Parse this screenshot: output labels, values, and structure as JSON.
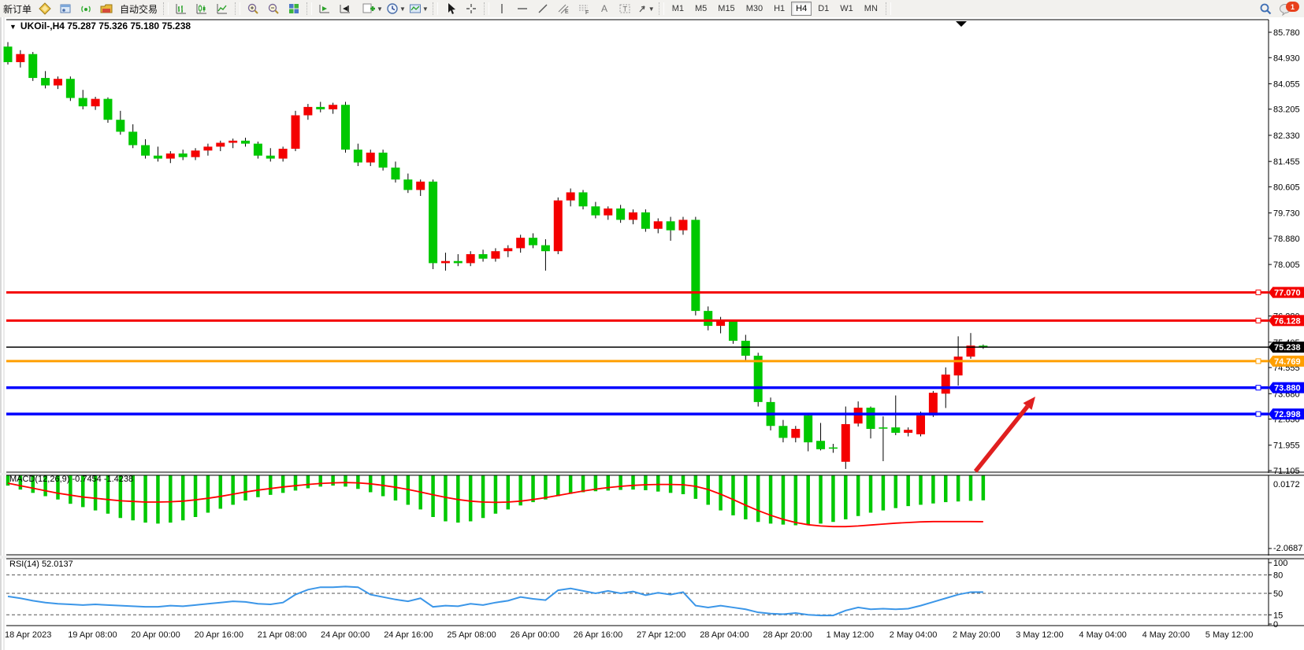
{
  "toolbar": {
    "new_order": "新订单",
    "auto_trading": "自动交易",
    "timeframes": [
      "M1",
      "M5",
      "M15",
      "M30",
      "H1",
      "H4",
      "D1",
      "W1",
      "MN"
    ],
    "active_timeframe": "H4",
    "notification_count": "1",
    "icons": [
      "market-watch-icon",
      "data-window-icon",
      "signal-icon",
      "autotrade-icon",
      "bar-chart-icon",
      "candlestick-chart-icon",
      "line-chart-icon",
      "zoom-in-icon",
      "zoom-out-icon",
      "tile-windows-icon",
      "chart-shift-icon",
      "chart-autoscroll-icon",
      "new-chart-icon",
      "period-icon",
      "template-icon",
      "cursor-icon",
      "crosshair-icon",
      "vertical-line-icon",
      "horizontal-line-icon",
      "trendline-icon",
      "channel-icon",
      "fibonacci-icon",
      "text-icon",
      "text-label-icon",
      "arrow-shapes-icon",
      "search-icon",
      "notification-icon"
    ]
  },
  "chart": {
    "title": "UKOil-,H4 75.287 75.326 75.180 75.238",
    "symbol": "UKOil-",
    "period": "H4",
    "open": "75.287",
    "high": "75.326",
    "low": "75.180",
    "close": "75.238"
  },
  "price_axis": {
    "ticks": [
      "85.780",
      "84.930",
      "84.055",
      "83.205",
      "82.330",
      "81.455",
      "80.605",
      "79.730",
      "78.880",
      "78.005",
      "76.280",
      "75.405",
      "74.555",
      "73.680",
      "72.830",
      "71.955",
      "71.105"
    ]
  },
  "time_axis": {
    "labels": [
      "18 Apr 2023",
      "19 Apr 08:00",
      "20 Apr 00:00",
      "20 Apr 16:00",
      "21 Apr 08:00",
      "24 Apr 00:00",
      "24 Apr 16:00",
      "25 Apr 08:00",
      "26 Apr 00:00",
      "26 Apr 16:00",
      "27 Apr 12:00",
      "28 Apr 04:00",
      "28 Apr 20:00",
      "1 May 12:00",
      "2 May 04:00",
      "2 May 20:00",
      "3 May 12:00",
      "4 May 04:00",
      "4 May 20:00",
      "5 May 12:00"
    ]
  },
  "indicators": {
    "macd": {
      "label": "MACD(12,26,9)",
      "values": "-0.7454 -1.4238",
      "axis_ticks": [
        "0.0172",
        "-2.0687"
      ]
    },
    "rsi": {
      "label": "RSI(14)",
      "value": "52.0137",
      "axis_ticks": [
        "100",
        "80",
        "50",
        "15",
        "0"
      ],
      "levels": [
        80,
        50,
        15
      ]
    }
  },
  "colors": {
    "bull": "#f40000",
    "bear": "#00c800",
    "wick": "#000000",
    "resistance": "#f40000",
    "support": "#0000ff",
    "pivot": "#ff9f00",
    "current_price": "#000000",
    "macd_histogram": "#00c800",
    "macd_signal": "#ff0000",
    "rsi_line": "#3b96e8",
    "arrow": "#e01f1f"
  },
  "chart_data": {
    "type": "candlestick",
    "symbol": "UKOil-",
    "timeframe": "H4",
    "price_axis_range": [
      71.0,
      85.9
    ],
    "candles": [
      [
        85.3,
        85.45,
        84.7,
        84.78
      ],
      [
        84.78,
        85.18,
        84.6,
        85.05
      ],
      [
        85.05,
        85.12,
        84.15,
        84.25
      ],
      [
        84.25,
        84.48,
        83.9,
        84.0
      ],
      [
        84.0,
        84.3,
        83.88,
        84.22
      ],
      [
        84.22,
        84.3,
        83.48,
        83.58
      ],
      [
        83.58,
        83.85,
        83.2,
        83.3
      ],
      [
        83.3,
        83.62,
        83.18,
        83.55
      ],
      [
        83.55,
        83.6,
        82.75,
        82.85
      ],
      [
        82.85,
        83.15,
        82.35,
        82.45
      ],
      [
        82.45,
        82.7,
        81.9,
        82.0
      ],
      [
        82.0,
        82.2,
        81.55,
        81.65
      ],
      [
        81.65,
        81.95,
        81.45,
        81.55
      ],
      [
        81.55,
        81.8,
        81.4,
        81.72
      ],
      [
        81.72,
        81.85,
        81.5,
        81.6
      ],
      [
        81.6,
        81.9,
        81.5,
        81.82
      ],
      [
        81.82,
        82.05,
        81.65,
        81.95
      ],
      [
        81.95,
        82.15,
        81.8,
        82.08
      ],
      [
        82.08,
        82.22,
        81.9,
        82.15
      ],
      [
        82.15,
        82.25,
        81.95,
        82.05
      ],
      [
        82.05,
        82.12,
        81.55,
        81.65
      ],
      [
        81.65,
        81.9,
        81.45,
        81.55
      ],
      [
        81.55,
        81.95,
        81.45,
        81.88
      ],
      [
        81.88,
        83.15,
        81.8,
        83.0
      ],
      [
        83.0,
        83.38,
        82.85,
        83.28
      ],
      [
        83.28,
        83.45,
        83.1,
        83.2
      ],
      [
        83.2,
        83.42,
        83.05,
        83.35
      ],
      [
        83.35,
        83.45,
        81.75,
        81.85
      ],
      [
        81.85,
        82.05,
        81.3,
        81.42
      ],
      [
        81.42,
        81.85,
        81.3,
        81.75
      ],
      [
        81.75,
        81.85,
        81.15,
        81.25
      ],
      [
        81.25,
        81.45,
        80.75,
        80.85
      ],
      [
        80.85,
        81.05,
        80.4,
        80.5
      ],
      [
        80.5,
        80.85,
        80.3,
        80.78
      ],
      [
        80.78,
        80.85,
        77.85,
        78.05
      ],
      [
        78.05,
        78.4,
        77.8,
        78.12
      ],
      [
        78.12,
        78.35,
        77.95,
        78.05
      ],
      [
        78.05,
        78.45,
        77.95,
        78.35
      ],
      [
        78.35,
        78.5,
        78.1,
        78.2
      ],
      [
        78.2,
        78.55,
        78.1,
        78.45
      ],
      [
        78.45,
        78.65,
        78.25,
        78.55
      ],
      [
        78.55,
        79.0,
        78.4,
        78.9
      ],
      [
        78.9,
        79.05,
        78.55,
        78.65
      ],
      [
        78.65,
        78.85,
        77.8,
        78.45
      ],
      [
        78.45,
        80.25,
        78.35,
        80.15
      ],
      [
        80.15,
        80.55,
        79.95,
        80.42
      ],
      [
        80.42,
        80.5,
        79.85,
        79.95
      ],
      [
        79.95,
        80.1,
        79.55,
        79.65
      ],
      [
        79.65,
        79.95,
        79.5,
        79.88
      ],
      [
        79.88,
        80.0,
        79.4,
        79.5
      ],
      [
        79.5,
        79.85,
        79.35,
        79.75
      ],
      [
        79.75,
        79.85,
        79.1,
        79.2
      ],
      [
        79.2,
        79.55,
        79.05,
        79.45
      ],
      [
        79.45,
        79.6,
        78.8,
        79.15
      ],
      [
        79.15,
        79.6,
        79.0,
        79.5
      ],
      [
        79.5,
        79.6,
        76.3,
        76.45
      ],
      [
        76.45,
        76.6,
        75.8,
        75.95
      ],
      [
        75.95,
        76.25,
        75.7,
        76.1
      ],
      [
        76.1,
        76.15,
        75.35,
        75.45
      ],
      [
        75.45,
        75.65,
        74.8,
        74.95
      ],
      [
        74.95,
        75.05,
        73.25,
        73.4
      ],
      [
        73.4,
        73.55,
        72.45,
        72.6
      ],
      [
        72.6,
        72.8,
        72.05,
        72.2
      ],
      [
        72.2,
        72.6,
        72.05,
        72.5
      ],
      [
        72.95,
        73.0,
        71.75,
        72.05
      ],
      [
        72.1,
        72.7,
        71.78,
        71.82
      ],
      [
        71.88,
        72.0,
        71.7,
        71.85
      ],
      [
        71.4,
        73.25,
        71.16,
        72.66
      ],
      [
        72.68,
        73.42,
        72.58,
        73.21
      ],
      [
        73.21,
        73.25,
        72.18,
        72.5
      ],
      [
        72.55,
        72.92,
        71.42,
        72.52
      ],
      [
        72.55,
        73.62,
        72.29,
        72.37
      ],
      [
        72.37,
        72.55,
        72.25,
        72.47
      ],
      [
        72.32,
        73.08,
        72.25,
        72.95
      ],
      [
        72.95,
        73.77,
        72.9,
        73.71
      ],
      [
        73.68,
        74.56,
        73.2,
        74.32
      ],
      [
        74.29,
        75.6,
        73.95,
        74.92
      ],
      [
        74.92,
        75.71,
        74.85,
        75.29
      ],
      [
        75.287,
        75.326,
        75.18,
        75.238
      ]
    ],
    "hlines": [
      {
        "price": 77.07,
        "label": "77.070",
        "color": "#f40000",
        "width": 3,
        "name": "resistance-line-1"
      },
      {
        "price": 76.128,
        "label": "76.128",
        "color": "#f40000",
        "width": 3,
        "name": "resistance-line-2"
      },
      {
        "price": 75.238,
        "label": "75.238",
        "color": "#000000",
        "width": 1.5,
        "name": "current-price-line"
      },
      {
        "price": 74.769,
        "label": "74.769",
        "color": "#ff9f00",
        "width": 3,
        "name": "pivot-line"
      },
      {
        "price": 73.88,
        "label": "73.880",
        "color": "#0000ff",
        "width": 3.5,
        "name": "support-line-1"
      },
      {
        "price": 72.998,
        "label": "72.998",
        "color": "#0000ff",
        "width": 3.5,
        "name": "support-line-2"
      }
    ],
    "macd_histogram": [
      -0.3,
      -0.42,
      -0.52,
      -0.62,
      -0.72,
      -0.85,
      -0.95,
      -1.05,
      -1.15,
      -1.28,
      -1.35,
      -1.42,
      -1.45,
      -1.42,
      -1.35,
      -1.25,
      -1.12,
      -1.0,
      -0.88,
      -0.75,
      -0.65,
      -0.58,
      -0.52,
      -0.45,
      -0.38,
      -0.33,
      -0.3,
      -0.33,
      -0.4,
      -0.5,
      -0.62,
      -0.75,
      -0.88,
      -1.02,
      -1.25,
      -1.38,
      -1.42,
      -1.38,
      -1.28,
      -1.15,
      -1.02,
      -0.9,
      -0.8,
      -0.72,
      -0.62,
      -0.55,
      -0.5,
      -0.47,
      -0.45,
      -0.43,
      -0.42,
      -0.44,
      -0.48,
      -0.52,
      -0.56,
      -0.7,
      -0.88,
      -1.05,
      -1.2,
      -1.32,
      -1.4,
      -1.45,
      -1.48,
      -1.5,
      -1.48,
      -1.45,
      -1.4,
      -1.32,
      -1.22,
      -1.12,
      -1.05,
      -0.98,
      -0.92,
      -0.88,
      -0.84,
      -0.8,
      -0.78,
      -0.76,
      -0.7454
    ],
    "macd_signal": [
      -0.2,
      -0.28,
      -0.36,
      -0.44,
      -0.52,
      -0.58,
      -0.64,
      -0.68,
      -0.72,
      -0.76,
      -0.78,
      -0.8,
      -0.8,
      -0.79,
      -0.77,
      -0.73,
      -0.68,
      -0.62,
      -0.55,
      -0.48,
      -0.42,
      -0.37,
      -0.32,
      -0.28,
      -0.24,
      -0.21,
      -0.19,
      -0.18,
      -0.19,
      -0.22,
      -0.27,
      -0.33,
      -0.4,
      -0.48,
      -0.57,
      -0.65,
      -0.72,
      -0.77,
      -0.8,
      -0.81,
      -0.8,
      -0.77,
      -0.72,
      -0.66,
      -0.59,
      -0.52,
      -0.45,
      -0.39,
      -0.34,
      -0.3,
      -0.27,
      -0.25,
      -0.24,
      -0.24,
      -0.25,
      -0.3,
      -0.4,
      -0.55,
      -0.72,
      -0.9,
      -1.07,
      -1.22,
      -1.35,
      -1.45,
      -1.52,
      -1.56,
      -1.58,
      -1.58,
      -1.56,
      -1.53,
      -1.5,
      -1.47,
      -1.45,
      -1.43,
      -1.42,
      -1.42,
      -1.42,
      -1.42,
      -1.4238
    ],
    "rsi": [
      45,
      42,
      38,
      35,
      33,
      32,
      31,
      32,
      31,
      30,
      29,
      28,
      28,
      30,
      29,
      31,
      33,
      35,
      37,
      36,
      33,
      32,
      35,
      48,
      56,
      60,
      60,
      61,
      60,
      48,
      44,
      40,
      37,
      42,
      28,
      30,
      29,
      33,
      31,
      35,
      38,
      44,
      41,
      39,
      55,
      58,
      54,
      50,
      54,
      50,
      53,
      47,
      51,
      48,
      52,
      30,
      27,
      30,
      27,
      24,
      19,
      17,
      16,
      18,
      15,
      14,
      14,
      22,
      27,
      24,
      25,
      24,
      25,
      30,
      36,
      42,
      48,
      52,
      52.01
    ],
    "annotations": [
      {
        "type": "arrow",
        "from_xy": [
          1238,
          599
        ],
        "to_xy": [
          1314,
          504
        ],
        "color": "#e01f1f"
      }
    ]
  }
}
